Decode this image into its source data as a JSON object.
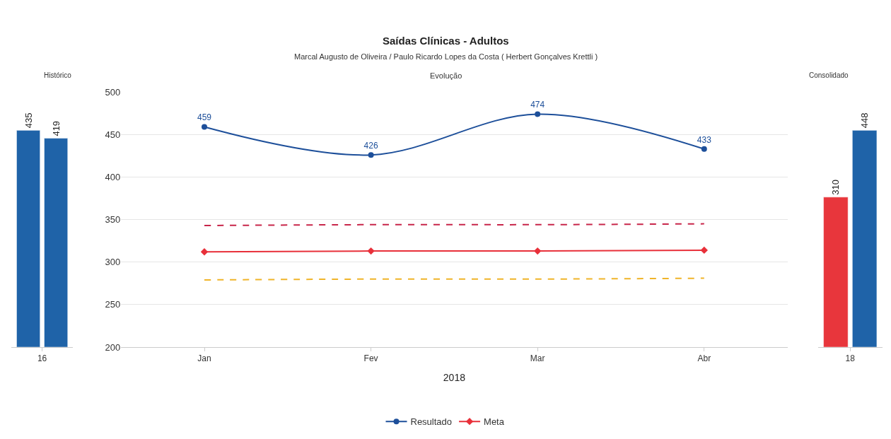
{
  "chart_data": [
    {
      "type": "bar",
      "title": "Histórico",
      "categories": [
        "16"
      ],
      "data_labels": true,
      "tick_labels": "x",
      "grid": false,
      "series": [
        {
          "color": "#1f63a8",
          "values": [
            435
          ]
        },
        {
          "color": "#1f63a8",
          "values": [
            419
          ]
        }
      ]
    },
    {
      "type": "line",
      "title": "Saídas Clínicas - Adultos",
      "subtitle": "Marcal Augusto de Oliveira / Paulo Ricardo Lopes da Costa ( Herbert Gonçalves Krettli )",
      "annotations": [
        "Evolução"
      ],
      "xlabel": "2018",
      "categories": [
        "Jan",
        "Fev",
        "Mar",
        "Abr"
      ],
      "ylim": [
        200,
        500
      ],
      "yticks": [
        200,
        250,
        300,
        350,
        400,
        450,
        500
      ],
      "grid": "y",
      "legend": "bottom",
      "series": [
        {
          "name": "Resultado",
          "color": "#1d4f9a",
          "values": [
            459,
            426,
            474,
            433
          ],
          "marker": "circle",
          "line_style": "solid",
          "data_labels": true
        },
        {
          "name": "Meta",
          "color": "#e8303a",
          "values": [
            312,
            313,
            313,
            314
          ],
          "marker": "diamond",
          "line_style": "solid"
        },
        {
          "color": "#c8264a",
          "values": [
            343,
            344,
            344,
            345
          ],
          "marker": "none",
          "line_style": "dashed"
        },
        {
          "color": "#f0b429",
          "values": [
            279,
            280,
            280,
            281
          ],
          "marker": "none",
          "line_style": "dashed"
        }
      ]
    },
    {
      "type": "bar",
      "title": "Consolidado",
      "categories": [
        "18"
      ],
      "data_labels": true,
      "tick_labels": "x",
      "grid": false,
      "series": [
        {
          "color": "#e8363c",
          "values": [
            310
          ]
        },
        {
          "color": "#1f63a8",
          "values": [
            448
          ]
        }
      ]
    }
  ]
}
